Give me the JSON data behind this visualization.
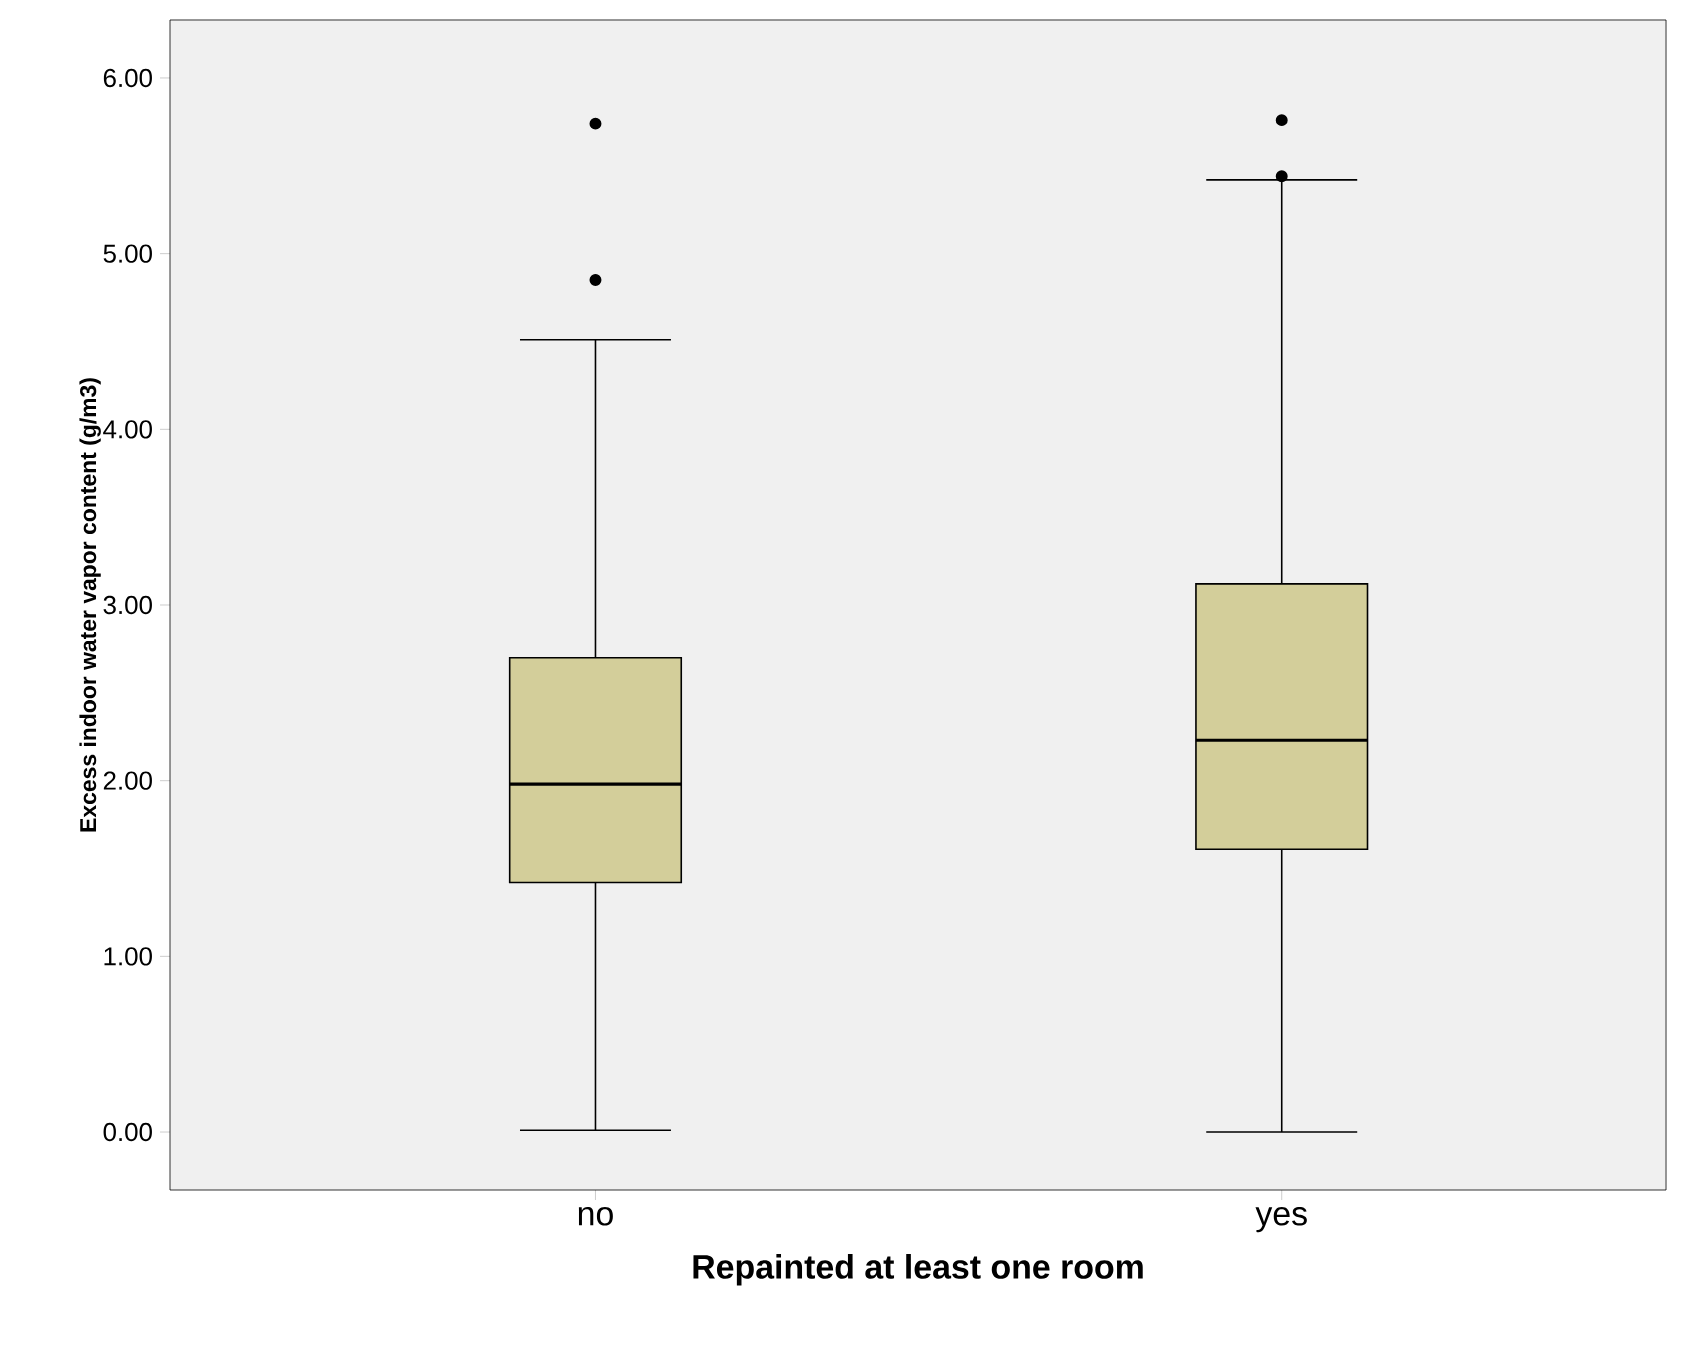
{
  "chart_data": {
    "type": "box",
    "xlabel": "Repainted at least one room",
    "ylabel": "Excess indoor water vapor content (g/m3)",
    "categories": [
      "no",
      "yes"
    ],
    "color": "#d3ce9a",
    "boxes": [
      {
        "low": 0.01,
        "q1": 1.42,
        "median": 1.98,
        "q3": 2.7,
        "high": 4.51,
        "outliers": [
          4.85,
          5.74
        ]
      },
      {
        "low": 0.0,
        "q1": 1.61,
        "median": 2.23,
        "q3": 3.12,
        "high": 5.42,
        "outliers": [
          5.44,
          5.76
        ]
      }
    ],
    "ylim": [
      -0.33,
      6.33
    ],
    "yticks": [
      {
        "value": 0,
        "label": "0.00"
      },
      {
        "value": 1,
        "label": "1.00"
      },
      {
        "value": 2,
        "label": "2.00"
      },
      {
        "value": 3,
        "label": "3.00"
      },
      {
        "value": 4,
        "label": "4.00"
      },
      {
        "value": 5,
        "label": "5.00"
      },
      {
        "value": 6,
        "label": "6.00"
      }
    ]
  }
}
